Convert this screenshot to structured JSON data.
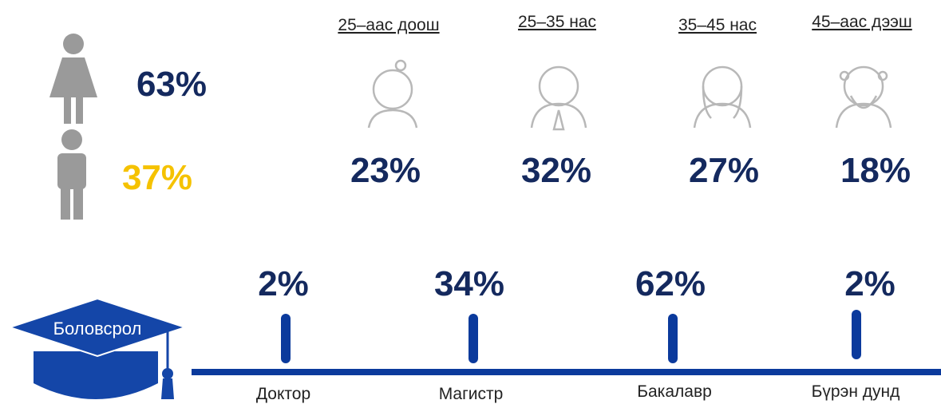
{
  "gender": [
    {
      "value": "63%"
    },
    {
      "value": "37%"
    }
  ],
  "age_groups": [
    {
      "label": "25–аас доош",
      "value": "23%"
    },
    {
      "label": "25–35 нас",
      "value": "32%"
    },
    {
      "label": "35–45 нас",
      "value": "27%"
    },
    {
      "label": "45–аас дээш",
      "value": "18%"
    }
  ],
  "education": {
    "title": "Боловсрол",
    "levels": [
      {
        "label": "Доктор",
        "value": "2%"
      },
      {
        "label": "Магистр",
        "value": "34%"
      },
      {
        "label": "Бакалавр",
        "value": "62%"
      },
      {
        "label": "Бүрэн дунд",
        "value": "2%"
      }
    ]
  }
}
